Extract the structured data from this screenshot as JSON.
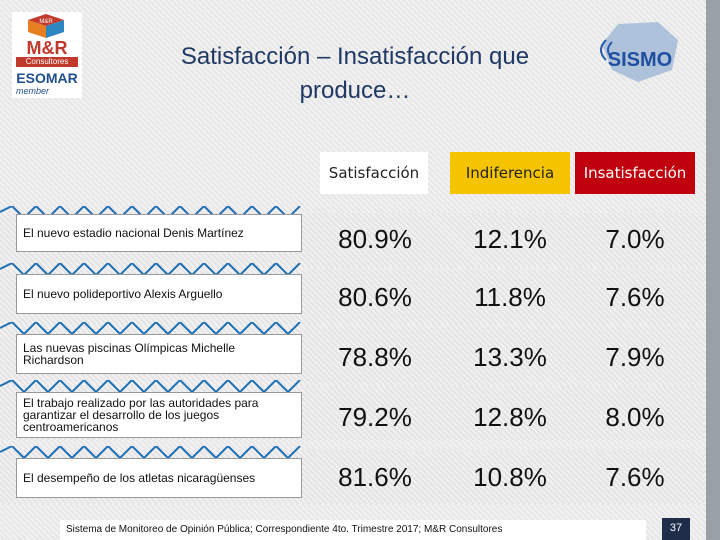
{
  "logo_left": {
    "cube_text": "M&R",
    "brand": "M&R",
    "sub": "Consultores",
    "org": "ESOMAR",
    "member": "member"
  },
  "logo_right": {
    "text": "SISMO"
  },
  "title": {
    "line1": "Satisfacción – Insatisfacción que",
    "line2": "produce…"
  },
  "columns": {
    "satisfaccion": "Satisfacción",
    "indiferencia": "Indiferencia",
    "insatisfaccion": "Insatisfacción"
  },
  "colors": {
    "indiferencia": "#f5c400",
    "insatisfaccion": "#c0000c",
    "title": "#1f3864"
  },
  "rows": [
    {
      "label": "El nuevo estadio nacional Denis Martínez",
      "sat": "80.9%",
      "ind": "12.1%",
      "ins": "7.0%"
    },
    {
      "label": "El nuevo polideportivo Alexis Arguello",
      "sat": "80.6%",
      "ind": "11.8%",
      "ins": "7.6%"
    },
    {
      "label": "Las nuevas piscinas Olímpicas Michelle Richardson",
      "sat": "78.8%",
      "ind": "13.3%",
      "ins": "7.9%"
    },
    {
      "label": "El trabajo realizado por las autoridades para garantizar el desarrollo de los juegos centroamericanos",
      "sat": "79.2%",
      "ind": "12.8%",
      "ins": "8.0%"
    },
    {
      "label": "El desempeño de los atletas nicaragüenses",
      "sat": "81.6%",
      "ind": "10.8%",
      "ins": "7.6%"
    }
  ],
  "footer": {
    "text": "Sistema de Monitoreo de Opinión Pública; Correspondiente 4to. Trimestre 2017; M&R Consultores",
    "page": "37"
  }
}
